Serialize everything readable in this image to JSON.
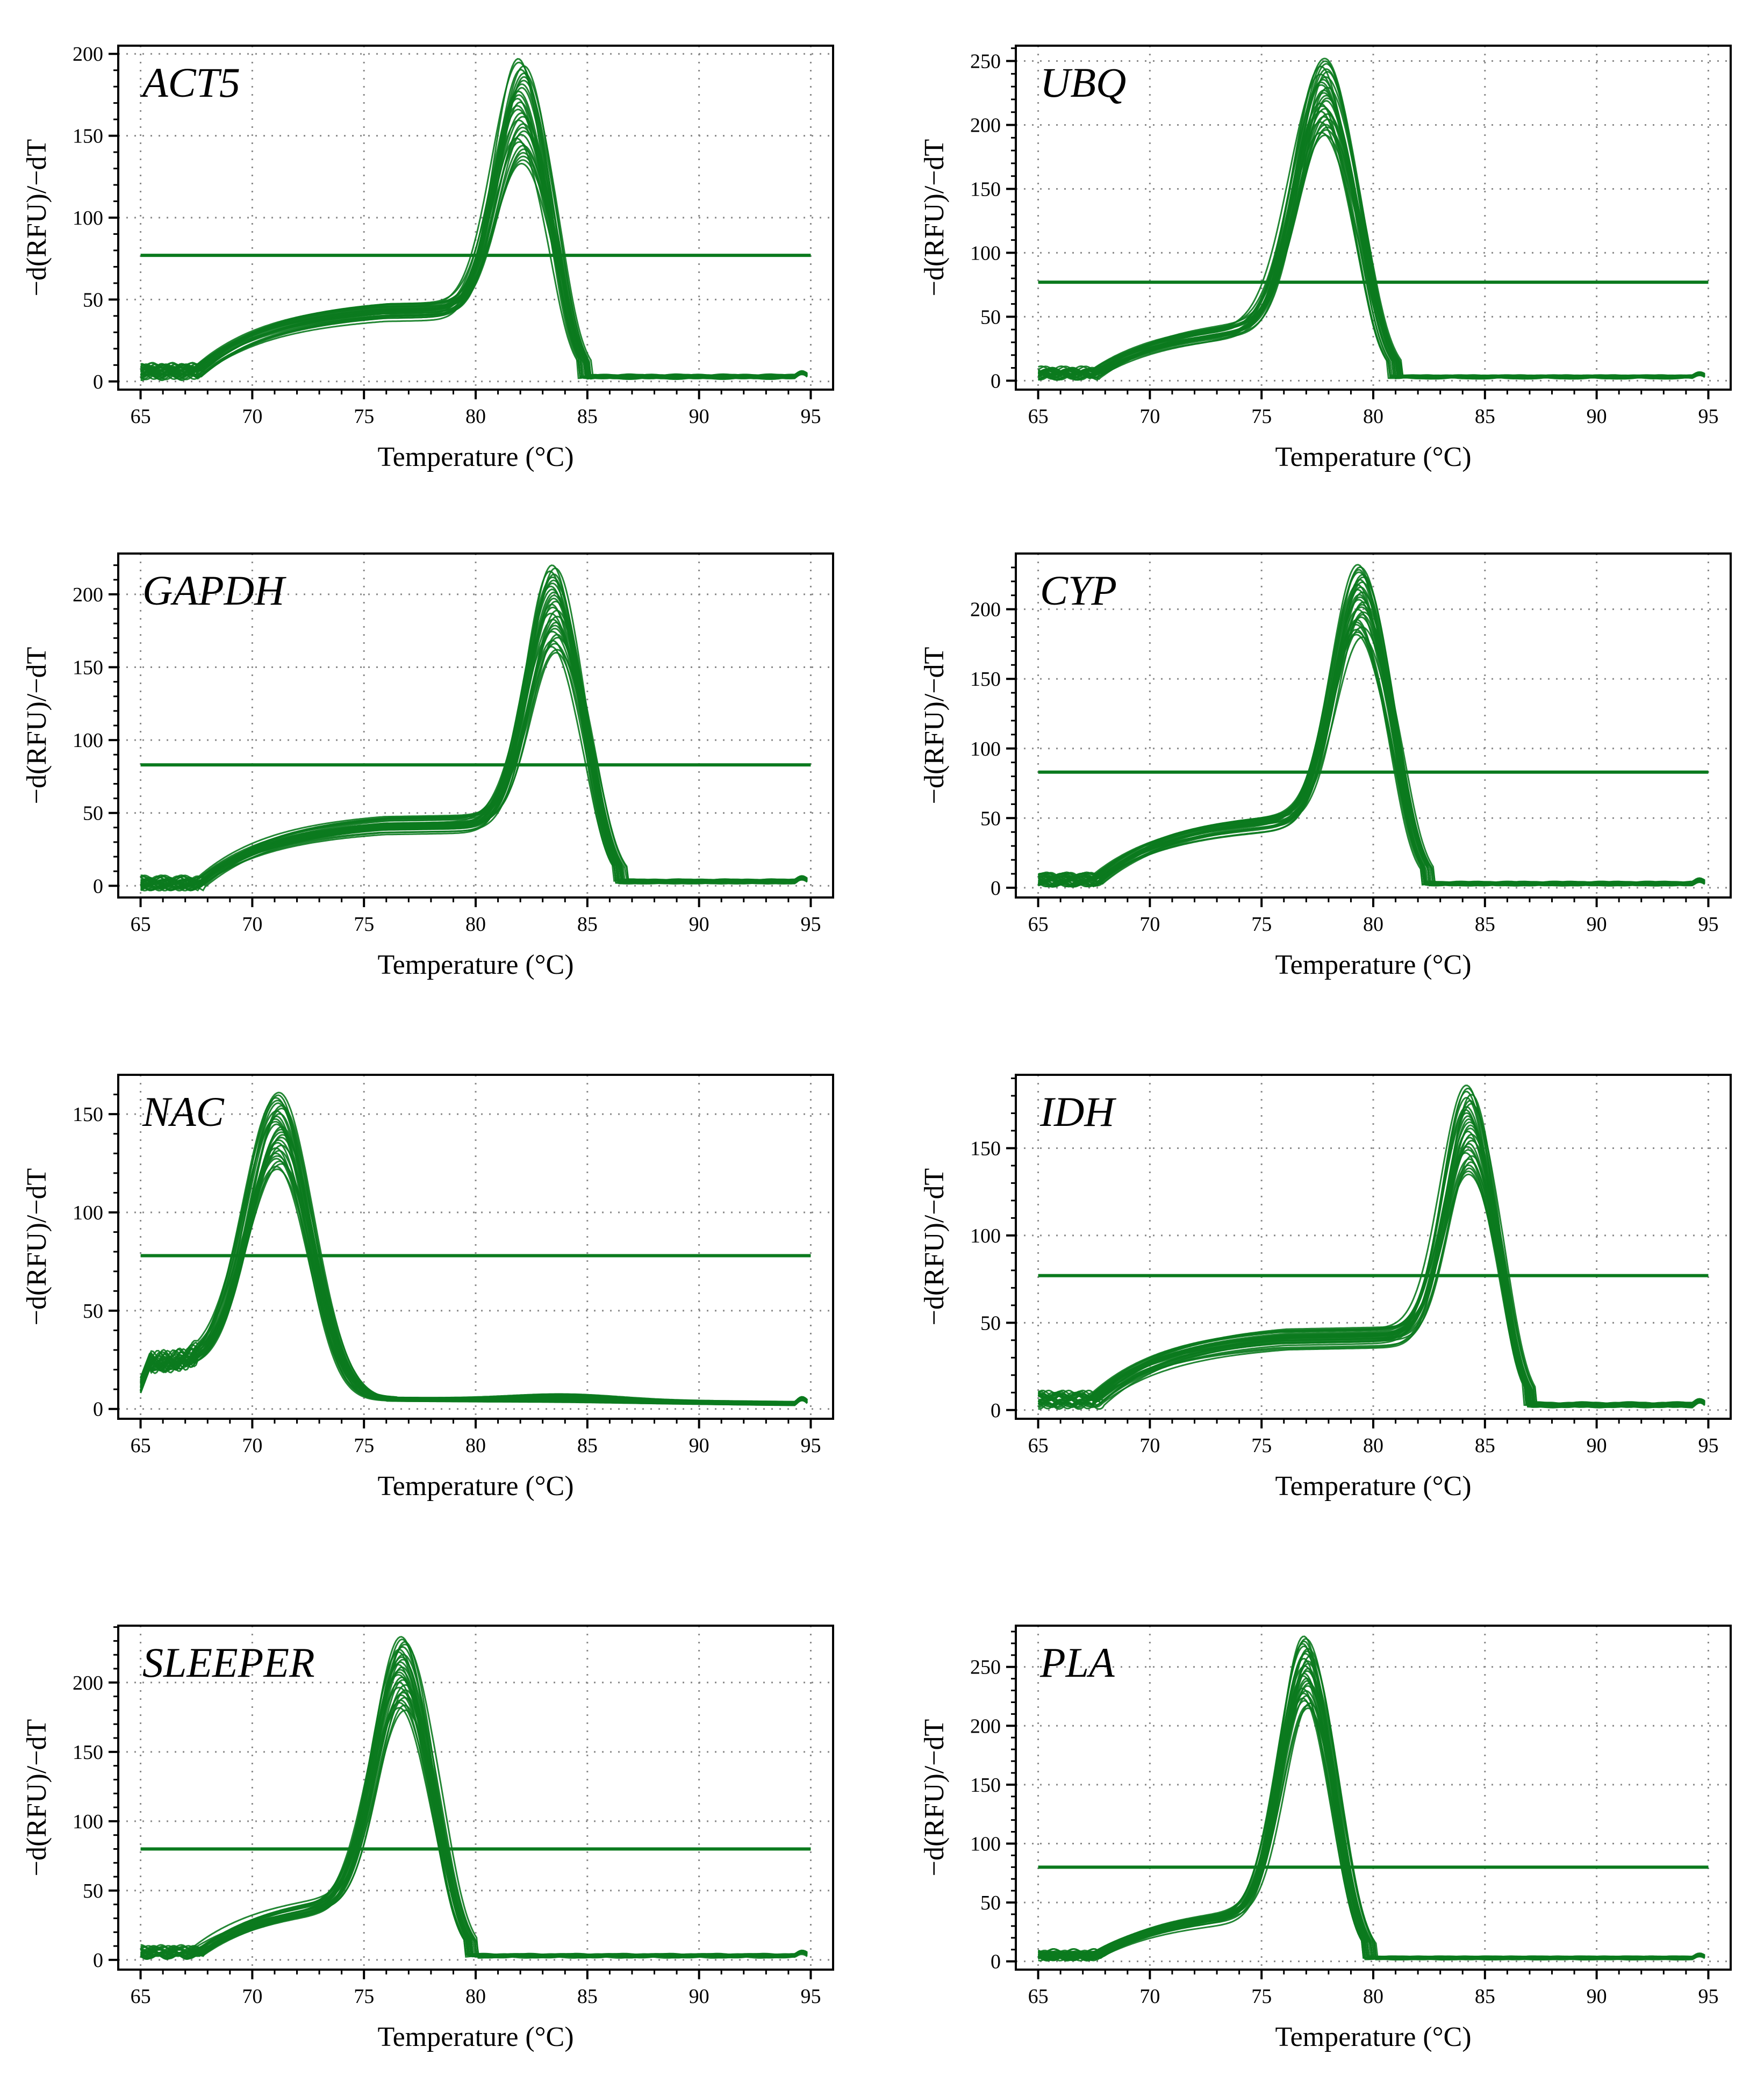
{
  "colors": {
    "curve": "#0b7a1e",
    "threshold": "#0b7a1e",
    "grid": "#8a8a8a",
    "axis": "#000000"
  },
  "chart_data": [
    {
      "type": "line",
      "title": "ACT5",
      "xlabel": "Temperature (°C)",
      "ylabel": "−d(RFU)/−dT",
      "xlim": [
        64,
        96
      ],
      "ylim": [
        -5,
        205
      ],
      "xticks": [
        65,
        70,
        75,
        80,
        85,
        90,
        95
      ],
      "yticks": [
        0,
        50,
        100,
        150,
        200
      ],
      "threshold": 77,
      "curve_family": {
        "shape": "peak",
        "tm": 82.0,
        "width": 1.15,
        "shoulder": 40,
        "shoulder_start": 68,
        "shoulder_end": 80.5,
        "low_y": 6,
        "peak_min": 133,
        "peak_max": 197,
        "count": 30
      }
    },
    {
      "type": "line",
      "title": "UBQ",
      "xlabel": "Temperature (°C)",
      "ylabel": "−d(RFU)/−dT",
      "xlim": [
        64,
        96
      ],
      "ylim": [
        -7,
        262
      ],
      "xticks": [
        65,
        70,
        75,
        80,
        85,
        90,
        95
      ],
      "yticks": [
        0,
        50,
        100,
        150,
        200,
        250
      ],
      "threshold": 77,
      "curve_family": {
        "shape": "peak",
        "tm": 77.8,
        "width": 1.3,
        "shoulder": 40,
        "shoulder_start": 68,
        "shoulder_end": 75.5,
        "low_y": 6,
        "peak_min": 192,
        "peak_max": 252,
        "count": 30
      }
    },
    {
      "type": "line",
      "title": "GAPDH",
      "xlabel": "Temperature (°C)",
      "ylabel": "−d(RFU)/−dT",
      "xlim": [
        64,
        96
      ],
      "ylim": [
        -8,
        228
      ],
      "xticks": [
        65,
        70,
        75,
        80,
        85,
        90,
        95
      ],
      "yticks": [
        0,
        50,
        100,
        150,
        200
      ],
      "threshold": 83,
      "curve_family": {
        "shape": "peak",
        "tm": 83.5,
        "width": 1.2,
        "shoulder": 40,
        "shoulder_start": 68,
        "shoulder_end": 81.5,
        "low_y": 2,
        "peak_min": 160,
        "peak_max": 220,
        "count": 30
      }
    },
    {
      "type": "line",
      "title": "CYP",
      "xlabel": "Temperature (°C)",
      "ylabel": "−d(RFU)/−dT",
      "xlim": [
        64,
        96
      ],
      "ylim": [
        -7,
        240
      ],
      "xticks": [
        65,
        70,
        75,
        80,
        85,
        90,
        95
      ],
      "yticks": [
        0,
        50,
        100,
        150,
        200
      ],
      "threshold": 83,
      "curve_family": {
        "shape": "peak",
        "tm": 79.4,
        "width": 1.2,
        "shoulder": 45,
        "shoulder_start": 68,
        "shoulder_end": 77.0,
        "low_y": 6,
        "peak_min": 180,
        "peak_max": 232,
        "count": 30
      }
    },
    {
      "type": "line",
      "title": "NAC",
      "xlabel": "Temperature (°C)",
      "ylabel": "−d(RFU)/−dT",
      "xlim": [
        64,
        96
      ],
      "ylim": [
        -5,
        170
      ],
      "xticks": [
        65,
        70,
        75,
        80,
        85,
        90,
        95
      ],
      "yticks": [
        0,
        50,
        100,
        150
      ],
      "threshold": 78,
      "curve_family": {
        "shape": "early",
        "tm": 71.2,
        "width": 1.45,
        "shoulder": 0,
        "shoulder_start": 68,
        "shoulder_end": 70,
        "low_y": 24,
        "peak_min": 122,
        "peak_max": 161,
        "count": 30
      }
    },
    {
      "type": "line",
      "title": "IDH",
      "xlabel": "Temperature (°C)",
      "ylabel": "−d(RFU)/−dT",
      "xlim": [
        64,
        96
      ],
      "ylim": [
        -5,
        192
      ],
      "xticks": [
        65,
        70,
        75,
        80,
        85,
        90,
        95
      ],
      "yticks": [
        0,
        50,
        100,
        150
      ],
      "threshold": 77,
      "curve_family": {
        "shape": "peak",
        "tm": 84.3,
        "width": 1.1,
        "shoulder": 38,
        "shoulder_start": 68,
        "shoulder_end": 82.0,
        "low_y": 6,
        "peak_min": 135,
        "peak_max": 186,
        "count": 30
      }
    },
    {
      "type": "line",
      "title": "SLEEPER",
      "xlabel": "Temperature (°C)",
      "ylabel": "−d(RFU)/−dT",
      "xlim": [
        64,
        96
      ],
      "ylim": [
        -7,
        241
      ],
      "xticks": [
        65,
        70,
        75,
        80,
        85,
        90,
        95
      ],
      "yticks": [
        0,
        50,
        100,
        150,
        200
      ],
      "threshold": 80,
      "curve_family": {
        "shape": "peak",
        "tm": 76.7,
        "width": 1.25,
        "shoulder": 40,
        "shoulder_start": 68,
        "shoulder_end": 74.5,
        "low_y": 6,
        "peak_min": 180,
        "peak_max": 233,
        "count": 30
      }
    },
    {
      "type": "line",
      "title": "PLA",
      "xlabel": "Temperature (°C)",
      "ylabel": "−d(RFU)/−dT",
      "xlim": [
        64,
        96
      ],
      "ylim": [
        -7,
        285
      ],
      "xticks": [
        65,
        70,
        75,
        80,
        85,
        90,
        95
      ],
      "yticks": [
        0,
        50,
        100,
        150,
        200,
        250
      ],
      "threshold": 80,
      "curve_family": {
        "shape": "peak",
        "tm": 77.0,
        "width": 1.15,
        "shoulder": 40,
        "shoulder_start": 68,
        "shoulder_end": 75.0,
        "low_y": 6,
        "peak_min": 215,
        "peak_max": 276,
        "count": 30
      }
    }
  ]
}
